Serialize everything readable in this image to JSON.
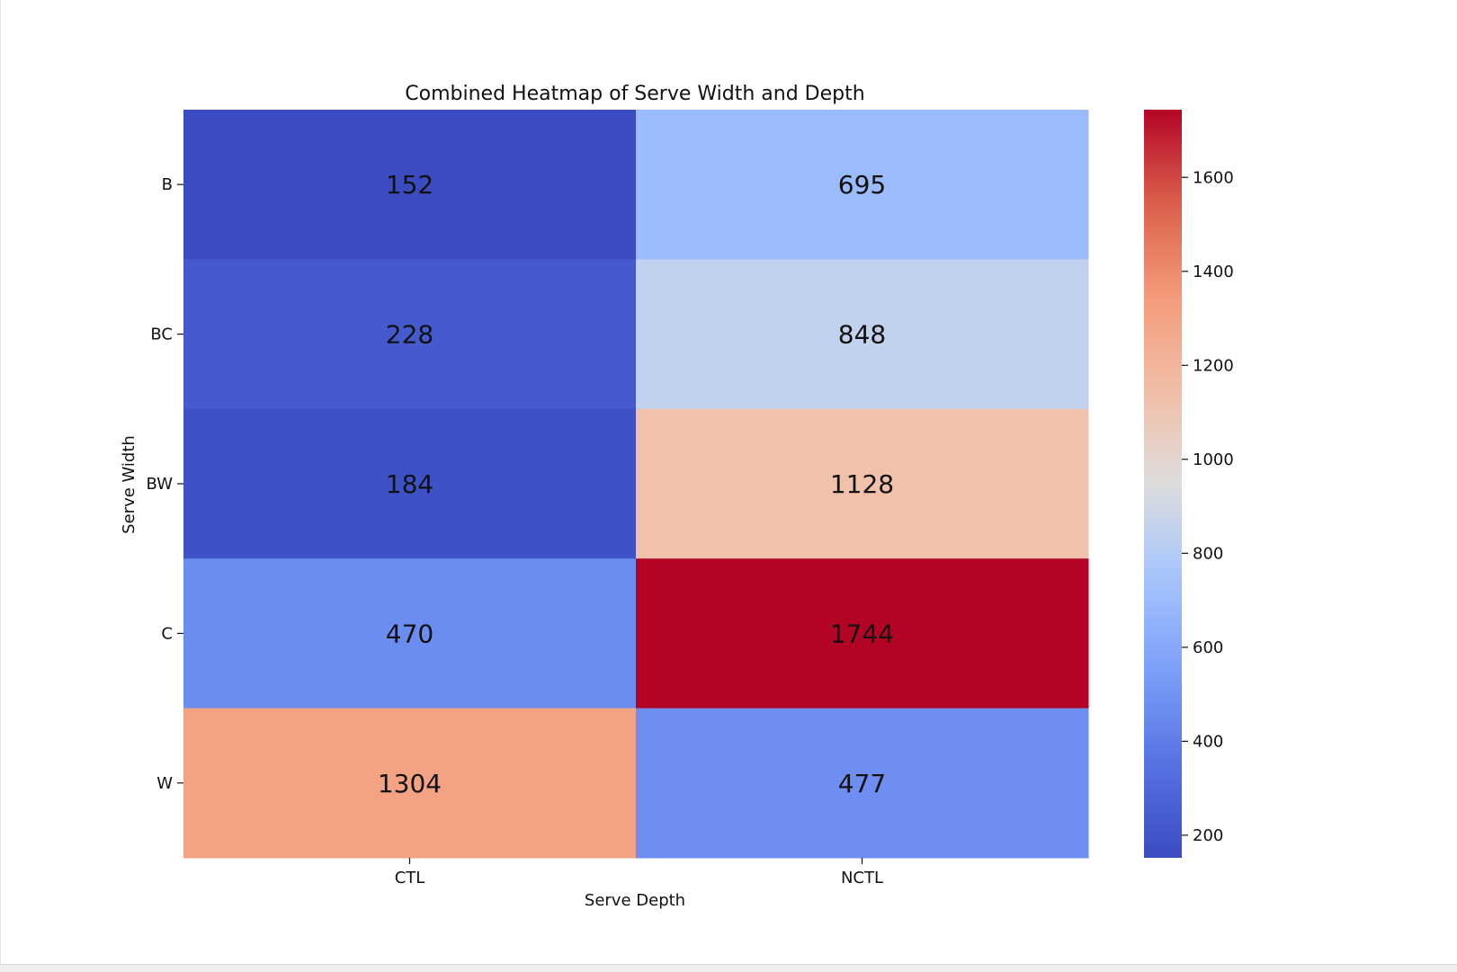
{
  "chart_data": {
    "type": "heatmap",
    "title": "Combined Heatmap of Serve Width and Depth",
    "xlabel": "Serve Depth",
    "ylabel": "Serve Width",
    "x_categories": [
      "CTL",
      "NCTL"
    ],
    "y_categories": [
      "B",
      "BC",
      "BW",
      "C",
      "W"
    ],
    "values": [
      [
        152,
        695
      ],
      [
        228,
        848
      ],
      [
        184,
        1128
      ],
      [
        470,
        1744
      ],
      [
        1304,
        477
      ]
    ],
    "colormap": "coolwarm",
    "colorbar": {
      "vmin": 152,
      "vmax": 1744,
      "ticks": [
        200,
        400,
        600,
        800,
        1000,
        1200,
        1400,
        1600
      ]
    }
  }
}
